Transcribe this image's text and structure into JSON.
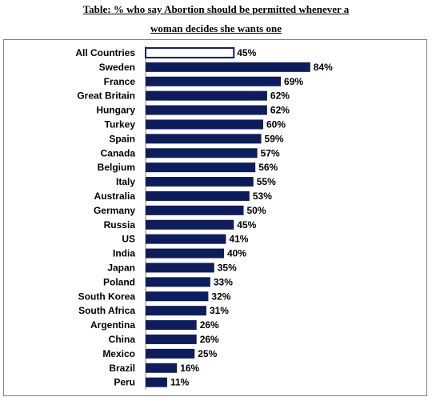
{
  "title_line1": "Table: % who say Abortion should be permitted whenever a",
  "title_line2": "woman decides she wants one",
  "colors": {
    "bar": "#0d1d5c",
    "highlight_fill": "#ffffff",
    "axis": "#7f7f7f"
  },
  "chart_data": {
    "type": "bar",
    "orientation": "horizontal",
    "title": "Table: % who say Abortion should be permitted whenever a woman decides she wants one",
    "xlabel": "",
    "ylabel": "",
    "xlim": [
      0,
      100
    ],
    "grid": false,
    "legend": "none",
    "categories": [
      "All Countries",
      "Sweden",
      "France",
      "Great Britain",
      "Hungary",
      "Turkey",
      "Spain",
      "Canada",
      "Belgium",
      "Italy",
      "Australia",
      "Germany",
      "Russia",
      "US",
      "India",
      "Japan",
      "Poland",
      "South Korea",
      "South Africa",
      "Argentina",
      "China",
      "Mexico",
      "Brazil",
      "Peru"
    ],
    "values": [
      45,
      84,
      69,
      62,
      62,
      60,
      59,
      57,
      56,
      55,
      53,
      50,
      45,
      41,
      40,
      35,
      33,
      32,
      31,
      26,
      26,
      25,
      16,
      11
    ],
    "value_labels": [
      "45%",
      "84%",
      "69%",
      "62%",
      "62%",
      "60%",
      "59%",
      "57%",
      "56%",
      "55%",
      "53%",
      "50%",
      "45%",
      "41%",
      "40%",
      "35%",
      "33%",
      "32%",
      "31%",
      "26%",
      "26%",
      "25%",
      "16%",
      "11%"
    ],
    "highlight_category": "All Countries"
  }
}
